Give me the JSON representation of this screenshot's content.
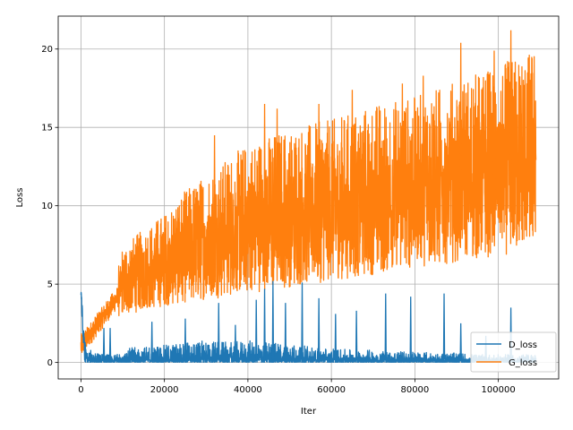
{
  "chart_data": {
    "type": "line",
    "title": "",
    "xlabel": "Iter",
    "ylabel": "Loss",
    "xlim": [
      -5450,
      114450
    ],
    "ylim": [
      -1.05,
      22.1
    ],
    "xticks": [
      0,
      20000,
      40000,
      60000,
      80000,
      100000
    ],
    "xtick_labels": [
      "0",
      "20000",
      "40000",
      "60000",
      "80000",
      "100000"
    ],
    "yticks": [
      0,
      5,
      10,
      15,
      20
    ],
    "ytick_labels": [
      "0",
      "5",
      "10",
      "15",
      "20"
    ],
    "grid": true,
    "legend_position": "lower-right",
    "x_max": 109000,
    "series": [
      {
        "name": "D_loss",
        "color": "#1f77b4",
        "description": "Discriminator loss: spikes to ~6 at start, decays to near 0, noisy band with spikes up to ~4.5",
        "points": [
          [
            0,
            6.1
          ],
          [
            500,
            2.2
          ],
          [
            1500,
            1.0
          ],
          [
            3000,
            0.7
          ],
          [
            5000,
            0.55
          ],
          [
            8000,
            0.45
          ],
          [
            10000,
            0.9
          ],
          [
            15000,
            1.0
          ],
          [
            20000,
            1.1
          ],
          [
            25000,
            1.3
          ],
          [
            30000,
            1.4
          ],
          [
            35000,
            1.3
          ],
          [
            40000,
            1.4
          ],
          [
            45000,
            1.3
          ],
          [
            50000,
            1.2
          ],
          [
            55000,
            1.0
          ],
          [
            60000,
            0.9
          ],
          [
            65000,
            0.8
          ],
          [
            70000,
            0.8
          ],
          [
            75000,
            0.7
          ],
          [
            80000,
            0.7
          ],
          [
            85000,
            0.6
          ],
          [
            90000,
            0.6
          ],
          [
            95000,
            0.5
          ],
          [
            100000,
            0.5
          ],
          [
            105000,
            0.5
          ],
          [
            109000,
            0.5
          ]
        ],
        "spikes": [
          [
            5500,
            2.2
          ],
          [
            7000,
            2.2
          ],
          [
            17000,
            2.6
          ],
          [
            25000,
            2.8
          ],
          [
            33000,
            3.8
          ],
          [
            37000,
            2.4
          ],
          [
            42000,
            4.0
          ],
          [
            44000,
            4.7
          ],
          [
            46000,
            5.2
          ],
          [
            49000,
            3.8
          ],
          [
            53000,
            5.1
          ],
          [
            57000,
            4.1
          ],
          [
            61000,
            3.1
          ],
          [
            66000,
            3.3
          ],
          [
            73000,
            4.4
          ],
          [
            79000,
            4.2
          ],
          [
            87000,
            4.4
          ],
          [
            91000,
            2.5
          ],
          [
            97000,
            1.7
          ],
          [
            103000,
            3.5
          ]
        ]
      },
      {
        "name": "G_loss",
        "color": "#ff7f0e",
        "description": "Generator loss: starts ~1, rises with increasing noisy band, peaking ~21",
        "lower": [
          [
            0,
            0.8
          ],
          [
            2000,
            1.4
          ],
          [
            5000,
            2.2
          ],
          [
            8000,
            2.8
          ],
          [
            10000,
            3.0
          ],
          [
            15000,
            3.3
          ],
          [
            20000,
            3.6
          ],
          [
            30000,
            4.0
          ],
          [
            40000,
            4.4
          ],
          [
            50000,
            4.8
          ],
          [
            60000,
            5.2
          ],
          [
            70000,
            5.6
          ],
          [
            80000,
            6.0
          ],
          [
            90000,
            6.4
          ],
          [
            100000,
            6.8
          ],
          [
            109000,
            7.2
          ]
        ],
        "upper": [
          [
            0,
            3.0
          ],
          [
            2000,
            2.5
          ],
          [
            5000,
            4.0
          ],
          [
            8000,
            4.8
          ],
          [
            10000,
            7.5
          ],
          [
            15000,
            8.5
          ],
          [
            20000,
            9.5
          ],
          [
            25000,
            11.0
          ],
          [
            30000,
            12.0
          ],
          [
            35000,
            13.0
          ],
          [
            40000,
            14.0
          ],
          [
            50000,
            15.0
          ],
          [
            60000,
            15.5
          ],
          [
            70000,
            16.5
          ],
          [
            80000,
            17.0
          ],
          [
            90000,
            18.0
          ],
          [
            100000,
            19.0
          ],
          [
            109000,
            20.0
          ]
        ],
        "spikes": [
          [
            32000,
            14.5
          ],
          [
            44000,
            16.5
          ],
          [
            47000,
            16.2
          ],
          [
            57000,
            16.5
          ],
          [
            65000,
            17.4
          ],
          [
            77000,
            17.8
          ],
          [
            82000,
            18.3
          ],
          [
            91000,
            20.4
          ],
          [
            99000,
            19.9
          ],
          [
            103000,
            21.2
          ],
          [
            108000,
            19.5
          ]
        ]
      }
    ]
  }
}
